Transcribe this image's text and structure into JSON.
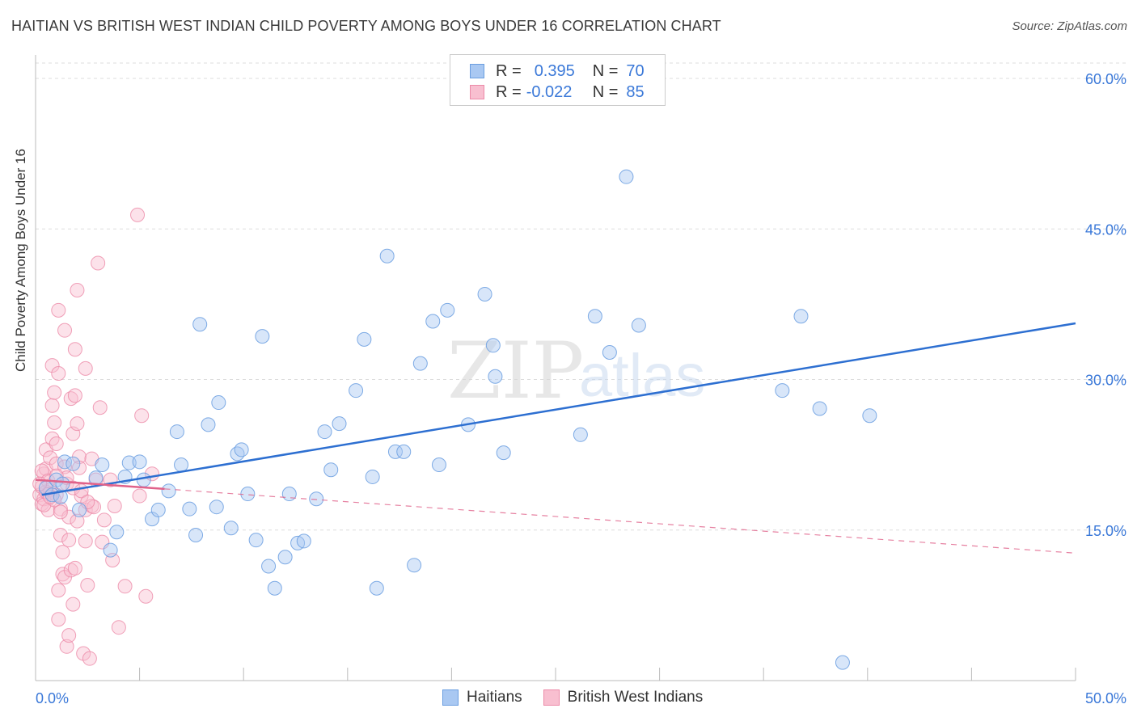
{
  "title": "HAITIAN VS BRITISH WEST INDIAN CHILD POVERTY AMONG BOYS UNDER 16 CORRELATION CHART",
  "source": "Source: ZipAtlas.com",
  "legend": {
    "r_label": "R =",
    "n_label": "N =",
    "rows": [
      {
        "r": "0.395",
        "n": "70",
        "color": "#a9c8f2",
        "border": "#6a9ee0"
      },
      {
        "r": "-0.022",
        "n": "85",
        "color": "#f8bfd0",
        "border": "#ec8aa8"
      }
    ]
  },
  "watermark": {
    "zip": "ZIP",
    "atlas": "atlas"
  },
  "colors": {
    "blue_fill": "#a9c8f2",
    "blue_stroke": "#6a9ee0",
    "blue_line": "#2d6fd1",
    "pink_fill": "#f8bfd0",
    "pink_stroke": "#ec8aa8",
    "pink_line": "#e0628a",
    "axis_label": "#3a78d8",
    "grid": "#dddddd"
  },
  "chart_data": {
    "type": "scatter",
    "title": "HAITIAN VS BRITISH WEST INDIAN CHILD POVERTY AMONG BOYS UNDER 16 CORRELATION CHART",
    "xlabel": "",
    "ylabel": "Child Poverty Among Boys Under 16",
    "xlim": [
      0,
      50
    ],
    "ylim": [
      0,
      60
    ],
    "x_tick_labels": [
      "0.0%",
      "50.0%"
    ],
    "y_ticks": [
      15,
      30,
      45,
      60
    ],
    "y_tick_labels": [
      "15.0%",
      "30.0%",
      "45.0%",
      "60.0%"
    ],
    "grid": "horizontal dashed",
    "legend_position": "top-center",
    "series": [
      {
        "name": "Haitians",
        "r": 0.395,
        "n": 70,
        "trend": {
          "x": [
            0.3,
            50
          ],
          "y": [
            18.5,
            35.6
          ]
        },
        "points": [
          [
            0.5,
            19.2
          ],
          [
            0.8,
            18.5
          ],
          [
            1.0,
            20.0
          ],
          [
            1.2,
            18.3
          ],
          [
            1.4,
            21.8
          ],
          [
            1.8,
            21.6
          ],
          [
            2.1,
            17.0
          ],
          [
            2.9,
            20.2
          ],
          [
            3.2,
            21.5
          ],
          [
            3.6,
            13.0
          ],
          [
            3.9,
            14.8
          ],
          [
            4.3,
            20.3
          ],
          [
            4.5,
            21.7
          ],
          [
            5.0,
            21.8
          ],
          [
            5.2,
            20.0
          ],
          [
            5.6,
            16.1
          ],
          [
            5.9,
            17.0
          ],
          [
            6.4,
            18.9
          ],
          [
            6.8,
            24.8
          ],
          [
            7.0,
            21.5
          ],
          [
            7.4,
            17.1
          ],
          [
            7.7,
            14.5
          ],
          [
            7.9,
            35.5
          ],
          [
            8.3,
            25.5
          ],
          [
            8.7,
            17.3
          ],
          [
            8.8,
            27.7
          ],
          [
            9.4,
            15.2
          ],
          [
            9.7,
            22.6
          ],
          [
            9.9,
            23.0
          ],
          [
            10.2,
            18.6
          ],
          [
            10.6,
            14.0
          ],
          [
            10.9,
            34.3
          ],
          [
            11.2,
            11.4
          ],
          [
            11.5,
            9.2
          ],
          [
            12.0,
            12.3
          ],
          [
            12.2,
            18.6
          ],
          [
            12.6,
            13.7
          ],
          [
            12.9,
            13.9
          ],
          [
            13.5,
            18.1
          ],
          [
            13.9,
            24.8
          ],
          [
            14.2,
            21.0
          ],
          [
            14.6,
            25.6
          ],
          [
            15.4,
            28.9
          ],
          [
            15.8,
            34.0
          ],
          [
            16.2,
            20.3
          ],
          [
            16.4,
            9.2
          ],
          [
            16.9,
            42.3
          ],
          [
            17.3,
            22.8
          ],
          [
            17.7,
            22.8
          ],
          [
            18.2,
            11.5
          ],
          [
            18.5,
            31.6
          ],
          [
            19.1,
            35.8
          ],
          [
            19.4,
            21.5
          ],
          [
            19.8,
            36.9
          ],
          [
            20.8,
            25.5
          ],
          [
            21.6,
            38.5
          ],
          [
            22.0,
            33.4
          ],
          [
            22.1,
            30.3
          ],
          [
            22.5,
            22.7
          ],
          [
            26.2,
            24.5
          ],
          [
            26.9,
            36.3
          ],
          [
            27.6,
            32.7
          ],
          [
            28.4,
            50.2
          ],
          [
            29.0,
            35.4
          ],
          [
            35.9,
            28.9
          ],
          [
            36.8,
            36.3
          ],
          [
            37.7,
            27.1
          ],
          [
            38.8,
            1.8
          ],
          [
            40.1,
            26.4
          ],
          [
            1.3,
            19.6
          ]
        ]
      },
      {
        "name": "British West Indians",
        "r": -0.022,
        "n": 85,
        "trend_solid": {
          "x": [
            0.0,
            6.2
          ],
          "y": [
            20.0,
            19.1
          ]
        },
        "trend_dashed": {
          "x": [
            6.2,
            50
          ],
          "y": [
            19.1,
            12.7
          ]
        },
        "points": [
          [
            0.2,
            18.5
          ],
          [
            0.3,
            17.6
          ],
          [
            0.3,
            19.3
          ],
          [
            0.4,
            20.6
          ],
          [
            0.4,
            18.1
          ],
          [
            0.5,
            23.0
          ],
          [
            0.5,
            21.1
          ],
          [
            0.6,
            18.6
          ],
          [
            0.6,
            17.0
          ],
          [
            0.7,
            22.2
          ],
          [
            0.7,
            19.0
          ],
          [
            0.8,
            24.1
          ],
          [
            0.8,
            31.4
          ],
          [
            0.8,
            27.4
          ],
          [
            0.9,
            28.7
          ],
          [
            0.9,
            25.7
          ],
          [
            1.0,
            21.6
          ],
          [
            1.0,
            23.6
          ],
          [
            1.0,
            18.5
          ],
          [
            1.1,
            30.6
          ],
          [
            1.1,
            36.9
          ],
          [
            1.1,
            9.0
          ],
          [
            1.1,
            6.1
          ],
          [
            1.2,
            14.5
          ],
          [
            1.2,
            17.1
          ],
          [
            1.3,
            12.8
          ],
          [
            1.3,
            10.6
          ],
          [
            1.4,
            10.3
          ],
          [
            1.4,
            21.3
          ],
          [
            1.4,
            34.9
          ],
          [
            1.5,
            3.4
          ],
          [
            1.5,
            19.6
          ],
          [
            1.6,
            14.0
          ],
          [
            1.6,
            4.5
          ],
          [
            1.6,
            16.3
          ],
          [
            1.7,
            28.1
          ],
          [
            1.7,
            11.0
          ],
          [
            1.8,
            24.6
          ],
          [
            1.8,
            7.6
          ],
          [
            1.9,
            11.2
          ],
          [
            1.9,
            28.4
          ],
          [
            1.9,
            33.0
          ],
          [
            2.0,
            38.9
          ],
          [
            2.0,
            25.6
          ],
          [
            2.1,
            22.3
          ],
          [
            2.1,
            21.2
          ],
          [
            2.2,
            18.4
          ],
          [
            2.3,
            2.7
          ],
          [
            2.4,
            13.9
          ],
          [
            2.4,
            17.0
          ],
          [
            2.4,
            31.1
          ],
          [
            2.5,
            9.5
          ],
          [
            2.6,
            2.2
          ],
          [
            2.7,
            17.4
          ],
          [
            2.7,
            22.1
          ],
          [
            2.9,
            20.0
          ],
          [
            3.0,
            41.6
          ],
          [
            3.1,
            27.2
          ],
          [
            3.2,
            13.8
          ],
          [
            3.6,
            20.0
          ],
          [
            3.7,
            12.0
          ],
          [
            3.8,
            17.4
          ],
          [
            4.0,
            5.3
          ],
          [
            4.3,
            9.4
          ],
          [
            4.9,
            46.4
          ],
          [
            5.0,
            18.4
          ],
          [
            5.1,
            26.4
          ],
          [
            5.3,
            8.4
          ],
          [
            5.6,
            20.6
          ],
          [
            0.3,
            20.9
          ],
          [
            0.4,
            17.5
          ],
          [
            0.5,
            18.8
          ],
          [
            0.6,
            19.9
          ],
          [
            0.9,
            18.0
          ],
          [
            1.2,
            16.8
          ],
          [
            1.5,
            20.2
          ],
          [
            1.8,
            19.2
          ],
          [
            2.0,
            15.9
          ],
          [
            2.2,
            18.9
          ],
          [
            2.8,
            17.3
          ],
          [
            3.3,
            16.0
          ],
          [
            0.2,
            19.6
          ],
          [
            0.7,
            18.3
          ],
          [
            1.0,
            20.4
          ],
          [
            2.5,
            17.8
          ]
        ]
      }
    ]
  }
}
